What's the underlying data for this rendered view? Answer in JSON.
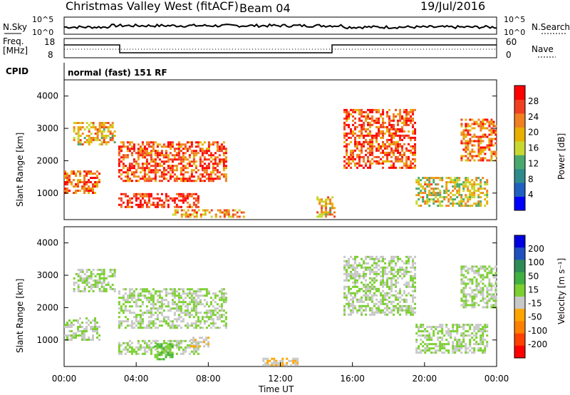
{
  "header": {
    "station": "Christmas Valley West (fitACF)",
    "beam": "Beam 04",
    "date": "19/Jul/2016"
  },
  "top_panel": {
    "left_label": "N.Sky",
    "left_ticks": [
      "10^5",
      "10^0"
    ],
    "right_label": "N.Search",
    "right_ticks": [
      "10^5",
      "10^0"
    ]
  },
  "freq_panel": {
    "left_label_line1": "Freq.",
    "left_label_line2": "[MHz]",
    "left_ticks": [
      "18",
      "8"
    ],
    "right_label": "Nave",
    "right_ticks": [
      "60",
      "0"
    ]
  },
  "cpid": {
    "label": "CPID",
    "text": "normal (fast) 151 RF"
  },
  "colors": {
    "power_scale": [
      "#0000ff",
      "#2060c0",
      "#2e8b8b",
      "#4aa86e",
      "#c8d830",
      "#e8b000",
      "#f08020",
      "#f04020",
      "#ff0000"
    ],
    "velocity_scale": [
      "#0000e0",
      "#2050c0",
      "#2e8b57",
      "#40b040",
      "#7cd030",
      "#c8c8c8",
      "#ffa500",
      "#ff8000",
      "#ff4000",
      "#ff0000"
    ]
  },
  "chart_data": [
    {
      "type": "heatmap",
      "name": "power",
      "ylabel": "Slant Range [km]",
      "xlabel": "",
      "y_ticks": [
        "1000",
        "2000",
        "3000",
        "4000"
      ],
      "ylim": [
        180,
        4500
      ],
      "xlim": [
        "00:00",
        "24:00"
      ],
      "colorbar_label": "Power [dB]",
      "colorbar_ticks": [
        "4",
        "8",
        "12",
        "16",
        "20",
        "24",
        "28"
      ],
      "colorbar_range": [
        0,
        32
      ],
      "echo_regions": [
        {
          "t_start": 0.0,
          "t_end": 2.0,
          "r_start": 1000,
          "r_end": 1700,
          "power": 26
        },
        {
          "t_start": 0.5,
          "t_end": 2.8,
          "r_start": 2500,
          "r_end": 3200,
          "power": 20
        },
        {
          "t_start": 3.0,
          "t_end": 9.0,
          "r_start": 1400,
          "r_end": 2600,
          "power": 26
        },
        {
          "t_start": 3.0,
          "t_end": 7.5,
          "r_start": 600,
          "r_end": 1000,
          "power": 28
        },
        {
          "t_start": 6.0,
          "t_end": 10.0,
          "r_start": 250,
          "r_end": 500,
          "power": 22
        },
        {
          "t_start": 14.0,
          "t_end": 15.0,
          "r_start": 300,
          "r_end": 900,
          "power": 20
        },
        {
          "t_start": 15.5,
          "t_end": 19.5,
          "r_start": 1800,
          "r_end": 3600,
          "power": 26
        },
        {
          "t_start": 19.5,
          "t_end": 23.5,
          "r_start": 600,
          "r_end": 1500,
          "power": 18
        },
        {
          "t_start": 22.0,
          "t_end": 24.0,
          "r_start": 2000,
          "r_end": 3300,
          "power": 24
        }
      ]
    },
    {
      "type": "heatmap",
      "name": "velocity",
      "ylabel": "Slant Range [km]",
      "xlabel": "Time UT",
      "x_ticks": [
        "00:00",
        "04:00",
        "08:00",
        "12:00",
        "16:00",
        "20:00",
        "00:00"
      ],
      "y_ticks": [
        "1000",
        "2000",
        "3000",
        "4000"
      ],
      "ylim": [
        180,
        4500
      ],
      "colorbar_label": "Velocity [m s⁻¹]",
      "colorbar_ticks": [
        "200",
        "100",
        "50",
        "15",
        "-15",
        "-50",
        "-100",
        "-200"
      ],
      "colorbar_range": [
        -250,
        250
      ],
      "echo_regions": [
        {
          "t_start": 0.0,
          "t_end": 2.0,
          "r_start": 1000,
          "r_end": 1700,
          "velocity": 0
        },
        {
          "t_start": 0.5,
          "t_end": 2.8,
          "r_start": 2500,
          "r_end": 3200,
          "velocity": 0
        },
        {
          "t_start": 3.0,
          "t_end": 9.0,
          "r_start": 1400,
          "r_end": 2600,
          "velocity": 0
        },
        {
          "t_start": 3.0,
          "t_end": 7.5,
          "r_start": 600,
          "r_end": 1000,
          "velocity": 0
        },
        {
          "t_start": 5.0,
          "t_end": 6.0,
          "r_start": 400,
          "r_end": 900,
          "velocity": 40
        },
        {
          "t_start": 7.0,
          "t_end": 8.0,
          "r_start": 800,
          "r_end": 1100,
          "velocity": -40
        },
        {
          "t_start": 11.0,
          "t_end": 13.0,
          "r_start": 250,
          "r_end": 450,
          "velocity": -40
        },
        {
          "t_start": 15.5,
          "t_end": 19.5,
          "r_start": 1800,
          "r_end": 3600,
          "velocity": 0
        },
        {
          "t_start": 19.5,
          "t_end": 23.5,
          "r_start": 600,
          "r_end": 1500,
          "velocity": 0
        },
        {
          "t_start": 22.0,
          "t_end": 24.0,
          "r_start": 2000,
          "r_end": 3300,
          "velocity": 0
        }
      ]
    }
  ]
}
